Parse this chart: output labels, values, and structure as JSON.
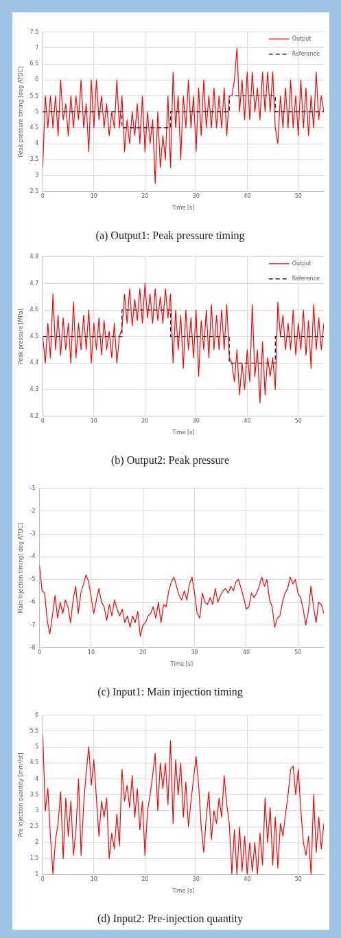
{
  "chart_data": [
    {
      "type": "line",
      "title": "(a) Output1: Peak pressure timing",
      "xlabel": "Time [s]",
      "ylabel": "Peak pressure timing [deg ATDC]",
      "xlim": [
        0,
        55
      ],
      "xticks": [
        0,
        10,
        20,
        30,
        40,
        50
      ],
      "ylim": [
        2.5,
        7.5
      ],
      "yticks": [
        2.5,
        3,
        3.5,
        4,
        4.5,
        5,
        5.5,
        6,
        6.5,
        7,
        7.5
      ],
      "grid": true,
      "legend": "top right",
      "marker": "none",
      "x": [
        0,
        0.5,
        1,
        1.5,
        2,
        2.5,
        3,
        3.5,
        4,
        4.5,
        5,
        5.5,
        6,
        6.5,
        7,
        7.5,
        8,
        8.5,
        9,
        9.5,
        10,
        10.5,
        11,
        11.5,
        12,
        12.5,
        13,
        13.5,
        14,
        14.5,
        15,
        15.5,
        16,
        16.5,
        17,
        17.5,
        18,
        18.5,
        19,
        19.5,
        20,
        20.5,
        21,
        21.5,
        22,
        22.5,
        23,
        23.5,
        24,
        24.5,
        25,
        25.5,
        26,
        26.5,
        27,
        27.5,
        28,
        28.5,
        29,
        29.5,
        30,
        30.5,
        31,
        31.5,
        32,
        32.5,
        33,
        33.5,
        34,
        34.5,
        35,
        35.5,
        36,
        36.5,
        37,
        37.5,
        38,
        38.5,
        39,
        39.5,
        40,
        40.5,
        41,
        41.5,
        42,
        42.5,
        43,
        43.5,
        44,
        44.5,
        45,
        45.5,
        46,
        46.5,
        47,
        47.5,
        48,
        48.5,
        49,
        49.5,
        50,
        50.5,
        51,
        51.5,
        52,
        52.5,
        53,
        53.5,
        54,
        54.5,
        55
      ],
      "series": [
        {
          "name": "Output",
          "color": "#ff0000",
          "line_style": "solid",
          "values": [
            3.25,
            5.5,
            4.5,
            5.5,
            4.5,
            5.5,
            4.25,
            6,
            4.75,
            5.25,
            4.25,
            5.5,
            4.5,
            5.5,
            4.75,
            6,
            4.5,
            5.25,
            3.75,
            6,
            4.5,
            6,
            4.75,
            5.5,
            4.5,
            5.25,
            4.25,
            5,
            4.5,
            6,
            4.5,
            5.5,
            3.75,
            4.75,
            4,
            5,
            4.25,
            5.25,
            4,
            5.5,
            3.75,
            5,
            4,
            4.75,
            2.75,
            5,
            3.25,
            4.25,
            3.5,
            5.5,
            3.25,
            6.25,
            4.5,
            5.5,
            3.5,
            5.5,
            4.5,
            6,
            4.5,
            5.5,
            3.75,
            5.75,
            4.25,
            6,
            4.5,
            5.5,
            4.5,
            5.75,
            4.5,
            5.5,
            4.5,
            5.75,
            4.25,
            5.5,
            5.5,
            6,
            7,
            5,
            6,
            4.75,
            6.25,
            4.75,
            6.25,
            5,
            5.75,
            4.75,
            6.25,
            5,
            6.25,
            5,
            6.25,
            4.5,
            4,
            5.5,
            4.5,
            5.75,
            4.5,
            6,
            4.5,
            5.5,
            4.25,
            6,
            4.5,
            5.75,
            4.25,
            5.5,
            4.5,
            6.25,
            4.75,
            5.5,
            5
          ]
        },
        {
          "name": "Reference",
          "color": "#000000",
          "line_style": "dashed",
          "x": [
            0,
            15.5,
            15.5,
            25,
            25,
            36.5,
            36.5,
            45.5,
            45.5,
            55
          ],
          "values": [
            5,
            5,
            4.5,
            4.5,
            5,
            5,
            5.5,
            5.5,
            5,
            5
          ]
        }
      ]
    },
    {
      "type": "line",
      "title": "(b) Output2: Peak pressure",
      "xlabel": "Time [s]",
      "ylabel": "Peak pressure [MPa]",
      "xlim": [
        0,
        55
      ],
      "xticks": [
        0,
        10,
        20,
        30,
        40,
        50
      ],
      "ylim": [
        4.2,
        4.8
      ],
      "yticks": [
        4.2,
        4.3,
        4.4,
        4.5,
        4.6,
        4.7,
        4.8
      ],
      "grid": true,
      "legend": "top right",
      "marker": "none",
      "x": [
        0,
        0.5,
        1,
        1.5,
        2,
        2.5,
        3,
        3.5,
        4,
        4.5,
        5,
        5.5,
        6,
        6.5,
        7,
        7.5,
        8,
        8.5,
        9,
        9.5,
        10,
        10.5,
        11,
        11.5,
        12,
        12.5,
        13,
        13.5,
        14,
        14.5,
        15,
        15.5,
        16,
        16.5,
        17,
        17.5,
        18,
        18.5,
        19,
        19.5,
        20,
        20.5,
        21,
        21.5,
        22,
        22.5,
        23,
        23.5,
        24,
        24.5,
        25,
        25.5,
        26,
        26.5,
        27,
        27.5,
        28,
        28.5,
        29,
        29.5,
        30,
        30.5,
        31,
        31.5,
        32,
        32.5,
        33,
        33.5,
        34,
        34.5,
        35,
        35.5,
        36,
        36.5,
        37,
        37.5,
        38,
        38.5,
        39,
        39.5,
        40,
        40.5,
        41,
        41.5,
        42,
        42.5,
        43,
        43.5,
        44,
        44.5,
        45,
        45.5,
        46,
        46.5,
        47,
        47.5,
        48,
        48.5,
        49,
        49.5,
        50,
        50.5,
        51,
        51.5,
        52,
        52.5,
        53,
        53.5,
        54,
        54.5,
        55
      ],
      "series": [
        {
          "name": "Output",
          "color": "#ff0000",
          "line_style": "solid",
          "values": [
            4.5,
            4.4,
            4.55,
            4.42,
            4.66,
            4.45,
            4.58,
            4.43,
            4.57,
            4.45,
            4.55,
            4.4,
            4.63,
            4.42,
            4.55,
            4.45,
            4.58,
            4.45,
            4.6,
            4.4,
            4.55,
            4.45,
            4.57,
            4.43,
            4.56,
            4.45,
            4.52,
            4.42,
            4.55,
            4.4,
            4.5,
            4.53,
            4.66,
            4.55,
            4.68,
            4.54,
            4.64,
            4.56,
            4.68,
            4.55,
            4.7,
            4.57,
            4.66,
            4.55,
            4.68,
            4.56,
            4.65,
            4.55,
            4.68,
            4.57,
            4.66,
            4.4,
            4.6,
            4.45,
            4.58,
            4.38,
            4.6,
            4.45,
            4.57,
            4.42,
            4.6,
            4.35,
            4.56,
            4.45,
            4.6,
            4.42,
            4.62,
            4.45,
            4.58,
            4.45,
            4.6,
            4.45,
            4.62,
            4.42,
            4.4,
            4.33,
            4.45,
            4.28,
            4.4,
            4.3,
            4.45,
            4.33,
            4.62,
            4.35,
            4.45,
            4.25,
            4.48,
            4.28,
            4.42,
            4.35,
            4.42,
            4.3,
            4.63,
            4.5,
            4.58,
            4.45,
            4.55,
            4.45,
            4.6,
            4.43,
            4.55,
            4.45,
            4.6,
            4.43,
            4.56,
            4.38,
            4.62,
            4.45,
            4.57,
            4.45,
            4.55
          ]
        },
        {
          "name": "Reference",
          "color": "#000000",
          "line_style": "dashed",
          "x": [
            0,
            15.5,
            15.5,
            25,
            25,
            36.5,
            36.5,
            45.5,
            45.5,
            55
          ],
          "values": [
            4.5,
            4.5,
            4.6,
            4.6,
            4.5,
            4.5,
            4.4,
            4.4,
            4.5,
            4.5
          ]
        }
      ]
    },
    {
      "type": "line",
      "title": "(c) Input1: Main injection timing",
      "xlabel": "Time [s]",
      "ylabel": "Main injection timing[ deg ATDC]",
      "xlim": [
        0,
        55
      ],
      "xticks": [
        0,
        10,
        20,
        30,
        40,
        50
      ],
      "ylim": [
        -8,
        -1
      ],
      "yticks": [
        -8,
        -7,
        -6,
        -5,
        -4,
        -3,
        -2,
        -1
      ],
      "grid": true,
      "marker": "none",
      "x": [
        0,
        0.5,
        1,
        1.5,
        2,
        2.5,
        3,
        3.5,
        4,
        4.5,
        5,
        5.5,
        6,
        6.5,
        7,
        7.5,
        8,
        8.5,
        9,
        9.5,
        10,
        10.5,
        11,
        11.5,
        12,
        12.5,
        13,
        13.5,
        14,
        14.5,
        15,
        15.5,
        16,
        16.5,
        17,
        17.5,
        18,
        18.5,
        19,
        19.5,
        20,
        20.5,
        21,
        21.5,
        22,
        22.5,
        23,
        23.5,
        24,
        24.5,
        25,
        25.5,
        26,
        26.5,
        27,
        27.5,
        28,
        28.5,
        29,
        29.5,
        30,
        30.5,
        31,
        31.5,
        32,
        32.5,
        33,
        33.5,
        34,
        34.5,
        35,
        35.5,
        36,
        36.5,
        37,
        37.5,
        38,
        38.5,
        39,
        39.5,
        40,
        40.5,
        41,
        41.5,
        42,
        42.5,
        43,
        43.5,
        44,
        44.5,
        45,
        45.5,
        46,
        46.5,
        47,
        47.5,
        48,
        48.5,
        49,
        49.5,
        50,
        50.5,
        51,
        51.5,
        52,
        52.5,
        53,
        53.5,
        54,
        54.5,
        55
      ],
      "series": [
        {
          "color": "#ff0000",
          "values": [
            -4.4,
            -5.5,
            -5.6,
            -6.8,
            -7.4,
            -6.6,
            -5.7,
            -6.7,
            -6,
            -6.5,
            -5.9,
            -6.2,
            -6.9,
            -5.9,
            -5.3,
            -6.5,
            -5.6,
            -5.2,
            -4.8,
            -5.1,
            -5.8,
            -6.5,
            -5.9,
            -5.4,
            -6,
            -6.2,
            -6.8,
            -6.1,
            -6.6,
            -5.9,
            -6.3,
            -6.6,
            -6.3,
            -6.9,
            -6.6,
            -7.1,
            -6.6,
            -6.9,
            -6.4,
            -7.5,
            -7,
            -6.9,
            -6.6,
            -6.5,
            -6.2,
            -6.7,
            -6,
            -6.9,
            -6.1,
            -6.2,
            -5.5,
            -5.1,
            -4.9,
            -5.3,
            -5.7,
            -5.9,
            -5.5,
            -5.9,
            -5.2,
            -4.9,
            -5.6,
            -6.5,
            -6.7,
            -5.6,
            -6,
            -6.1,
            -5.8,
            -6.1,
            -5.4,
            -6,
            -5.7,
            -5.5,
            -5.4,
            -5.6,
            -5.3,
            -5.5,
            -5.1,
            -5,
            -5.4,
            -5.8,
            -6.3,
            -6.2,
            -5.6,
            -5.8,
            -5.6,
            -5.3,
            -4.9,
            -5.3,
            -5,
            -5.9,
            -6.2,
            -7.1,
            -6.7,
            -6.6,
            -6,
            -5.6,
            -5.4,
            -4.9,
            -5.2,
            -5,
            -5.6,
            -5.8,
            -6.3,
            -7,
            -6.4,
            -5.3,
            -6.2,
            -6.9,
            -6,
            -6.1,
            -6.5
          ]
        }
      ]
    },
    {
      "type": "line",
      "title": "(d) Input2: Pre-injection quantity",
      "xlabel": "Time [s]",
      "ylabel": "Pre injection quantity [mm³/st]",
      "xlim": [
        0,
        55
      ],
      "xticks": [
        0,
        10,
        20,
        30,
        40,
        50
      ],
      "ylim": [
        1,
        6
      ],
      "yticks": [
        1,
        1.5,
        2,
        2.5,
        3,
        3.5,
        4,
        4.5,
        5,
        5.5,
        6
      ],
      "grid": true,
      "marker": "none",
      "x": [
        0,
        0.5,
        1,
        1.5,
        2,
        2.5,
        3,
        3.5,
        4,
        4.5,
        5,
        5.5,
        6,
        6.5,
        7,
        7.5,
        8,
        8.5,
        9,
        9.5,
        10,
        10.5,
        11,
        11.5,
        12,
        12.5,
        13,
        13.5,
        14,
        14.5,
        15,
        15.5,
        16,
        16.5,
        17,
        17.5,
        18,
        18.5,
        19,
        19.5,
        20,
        20.5,
        21,
        21.5,
        22,
        22.5,
        23,
        23.5,
        24,
        24.5,
        25,
        25.5,
        26,
        26.5,
        27,
        27.5,
        28,
        28.5,
        29,
        29.5,
        30,
        30.5,
        31,
        31.5,
        32,
        32.5,
        33,
        33.5,
        34,
        34.5,
        35,
        35.5,
        36,
        36.5,
        37,
        37.5,
        38,
        38.5,
        39,
        39.5,
        40,
        40.5,
        41,
        41.5,
        42,
        42.5,
        43,
        43.5,
        44,
        44.5,
        45,
        45.5,
        46,
        46.5,
        47,
        47.5,
        48,
        48.5,
        49,
        49.5,
        50,
        50.5,
        51,
        51.5,
        52,
        52.5,
        53,
        53.5,
        54,
        54.5,
        55
      ],
      "series": [
        {
          "color": "#ff0000",
          "values": [
            5.4,
            3,
            3.7,
            2.2,
            1,
            2.1,
            2.6,
            3.6,
            1.5,
            3.4,
            2.2,
            3.3,
            1.6,
            2.4,
            4,
            1.6,
            3.2,
            4.2,
            5,
            3.8,
            4.6,
            3.4,
            2.2,
            3.3,
            2.8,
            3.4,
            1.5,
            2.3,
            1.8,
            2.9,
            1.9,
            4.3,
            3.3,
            3.8,
            3.1,
            4.1,
            2.8,
            3.7,
            2.4,
            3.3,
            1.6,
            3,
            3.5,
            4.1,
            4.8,
            3,
            4.5,
            3.7,
            4.5,
            3.2,
            5.2,
            2.6,
            4.6,
            3.5,
            4.5,
            2.8,
            3.9,
            2.5,
            3.3,
            4,
            4.7,
            3.8,
            2.5,
            1.7,
            2.8,
            3.6,
            2.1,
            3,
            2.6,
            3.4,
            2.8,
            4.1,
            3.2,
            2.6,
            1,
            2.4,
            1,
            2.5,
            1.1,
            2.2,
            1,
            2,
            1.1,
            2,
            1,
            2.3,
            1.3,
            3.4,
            2,
            3.1,
            1.3,
            2.8,
            1.2,
            2.6,
            2.2,
            2.9,
            3.5,
            4.3,
            4.4,
            3.5,
            4.3,
            3,
            2,
            1.6,
            2.2,
            1,
            3.5,
            1.7,
            2.8,
            1.8,
            2.6
          ]
        }
      ]
    }
  ]
}
